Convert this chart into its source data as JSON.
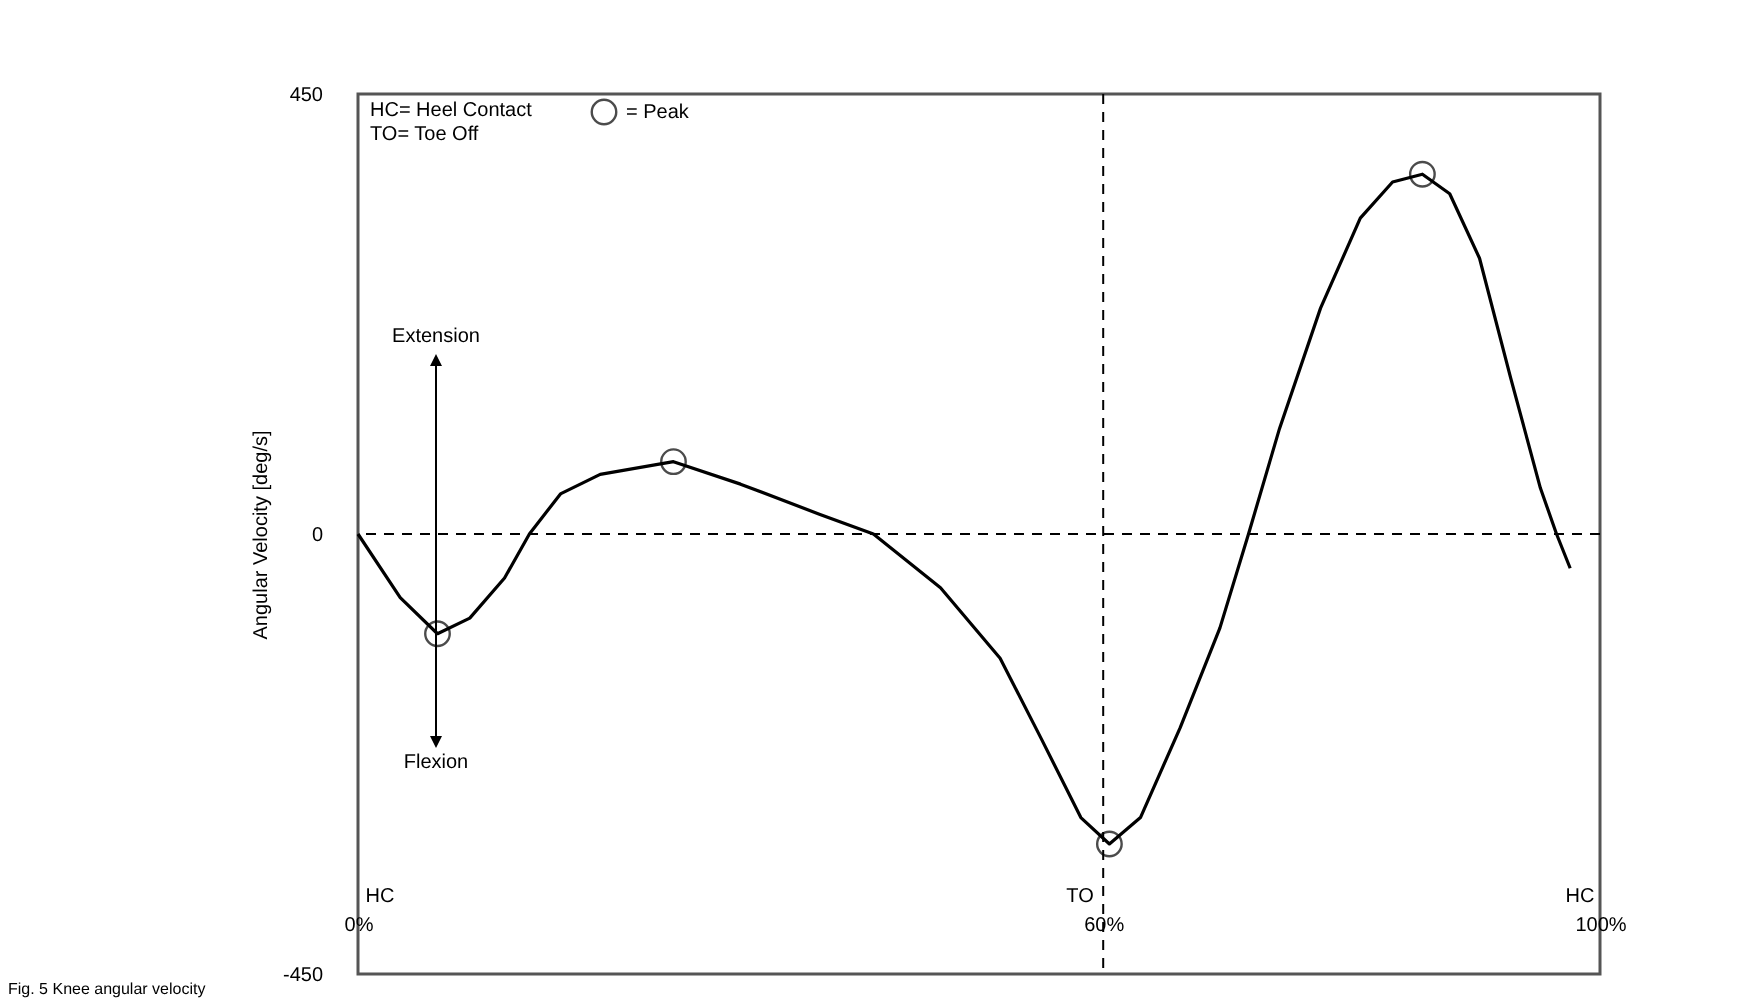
{
  "chart_data": {
    "type": "line",
    "ylabel": "Angular Velocity [deg/s]",
    "xlim": [
      0,
      100
    ],
    "xticks": [
      {
        "value": 0,
        "label": "0%"
      },
      {
        "value": 60,
        "label": "60%"
      },
      {
        "value": 100,
        "label": "100%"
      }
    ],
    "ylim": [
      -450,
      450
    ],
    "yticks": [
      -450,
      0,
      450
    ],
    "grid": false,
    "legend": "top left",
    "series": [
      {
        "color": "#000000",
        "x": [
          0,
          3.4,
          6.4,
          9,
          11.8,
          13.8,
          16.3,
          19.5,
          25.4,
          30.8,
          37.2,
          41.5,
          46.9,
          51.7,
          55,
          58.2,
          60.5,
          63,
          66.2,
          69.4,
          71.7,
          74.2,
          77.5,
          80.7,
          83.3,
          85.7,
          87.9,
          90.3,
          92.8,
          95.2,
          96.5,
          97.6
        ],
        "values": [
          0,
          -65,
          -102,
          -86,
          -45,
          0,
          41,
          61,
          74,
          51,
          20,
          0,
          -55,
          -127,
          -209,
          -290,
          -317,
          -290,
          -198,
          -96,
          0,
          108,
          231,
          323,
          360,
          368,
          348,
          282,
          160,
          47,
          0,
          -35
        ]
      },
      {
        "type": "scatter",
        "name": "= Peak",
        "color": "#000000",
        "marker": "circle",
        "x": [
          6.4,
          25.4,
          60.5,
          85.7
        ],
        "values": [
          -102,
          74,
          -317,
          368
        ]
      }
    ],
    "ref_lines": [
      {
        "axis": "y",
        "value": 0,
        "line_style": "dashed",
        "color": "#000000"
      },
      {
        "axis": "x",
        "value": 60,
        "line_style": "dashed",
        "color": "#000000"
      }
    ],
    "annotations": [
      "HC= Heel Contact",
      "TO= Toe Off",
      "Extension",
      "Flexion",
      "HC",
      "TO",
      "HC",
      "Fig. 5 Knee angular velocity"
    ]
  }
}
